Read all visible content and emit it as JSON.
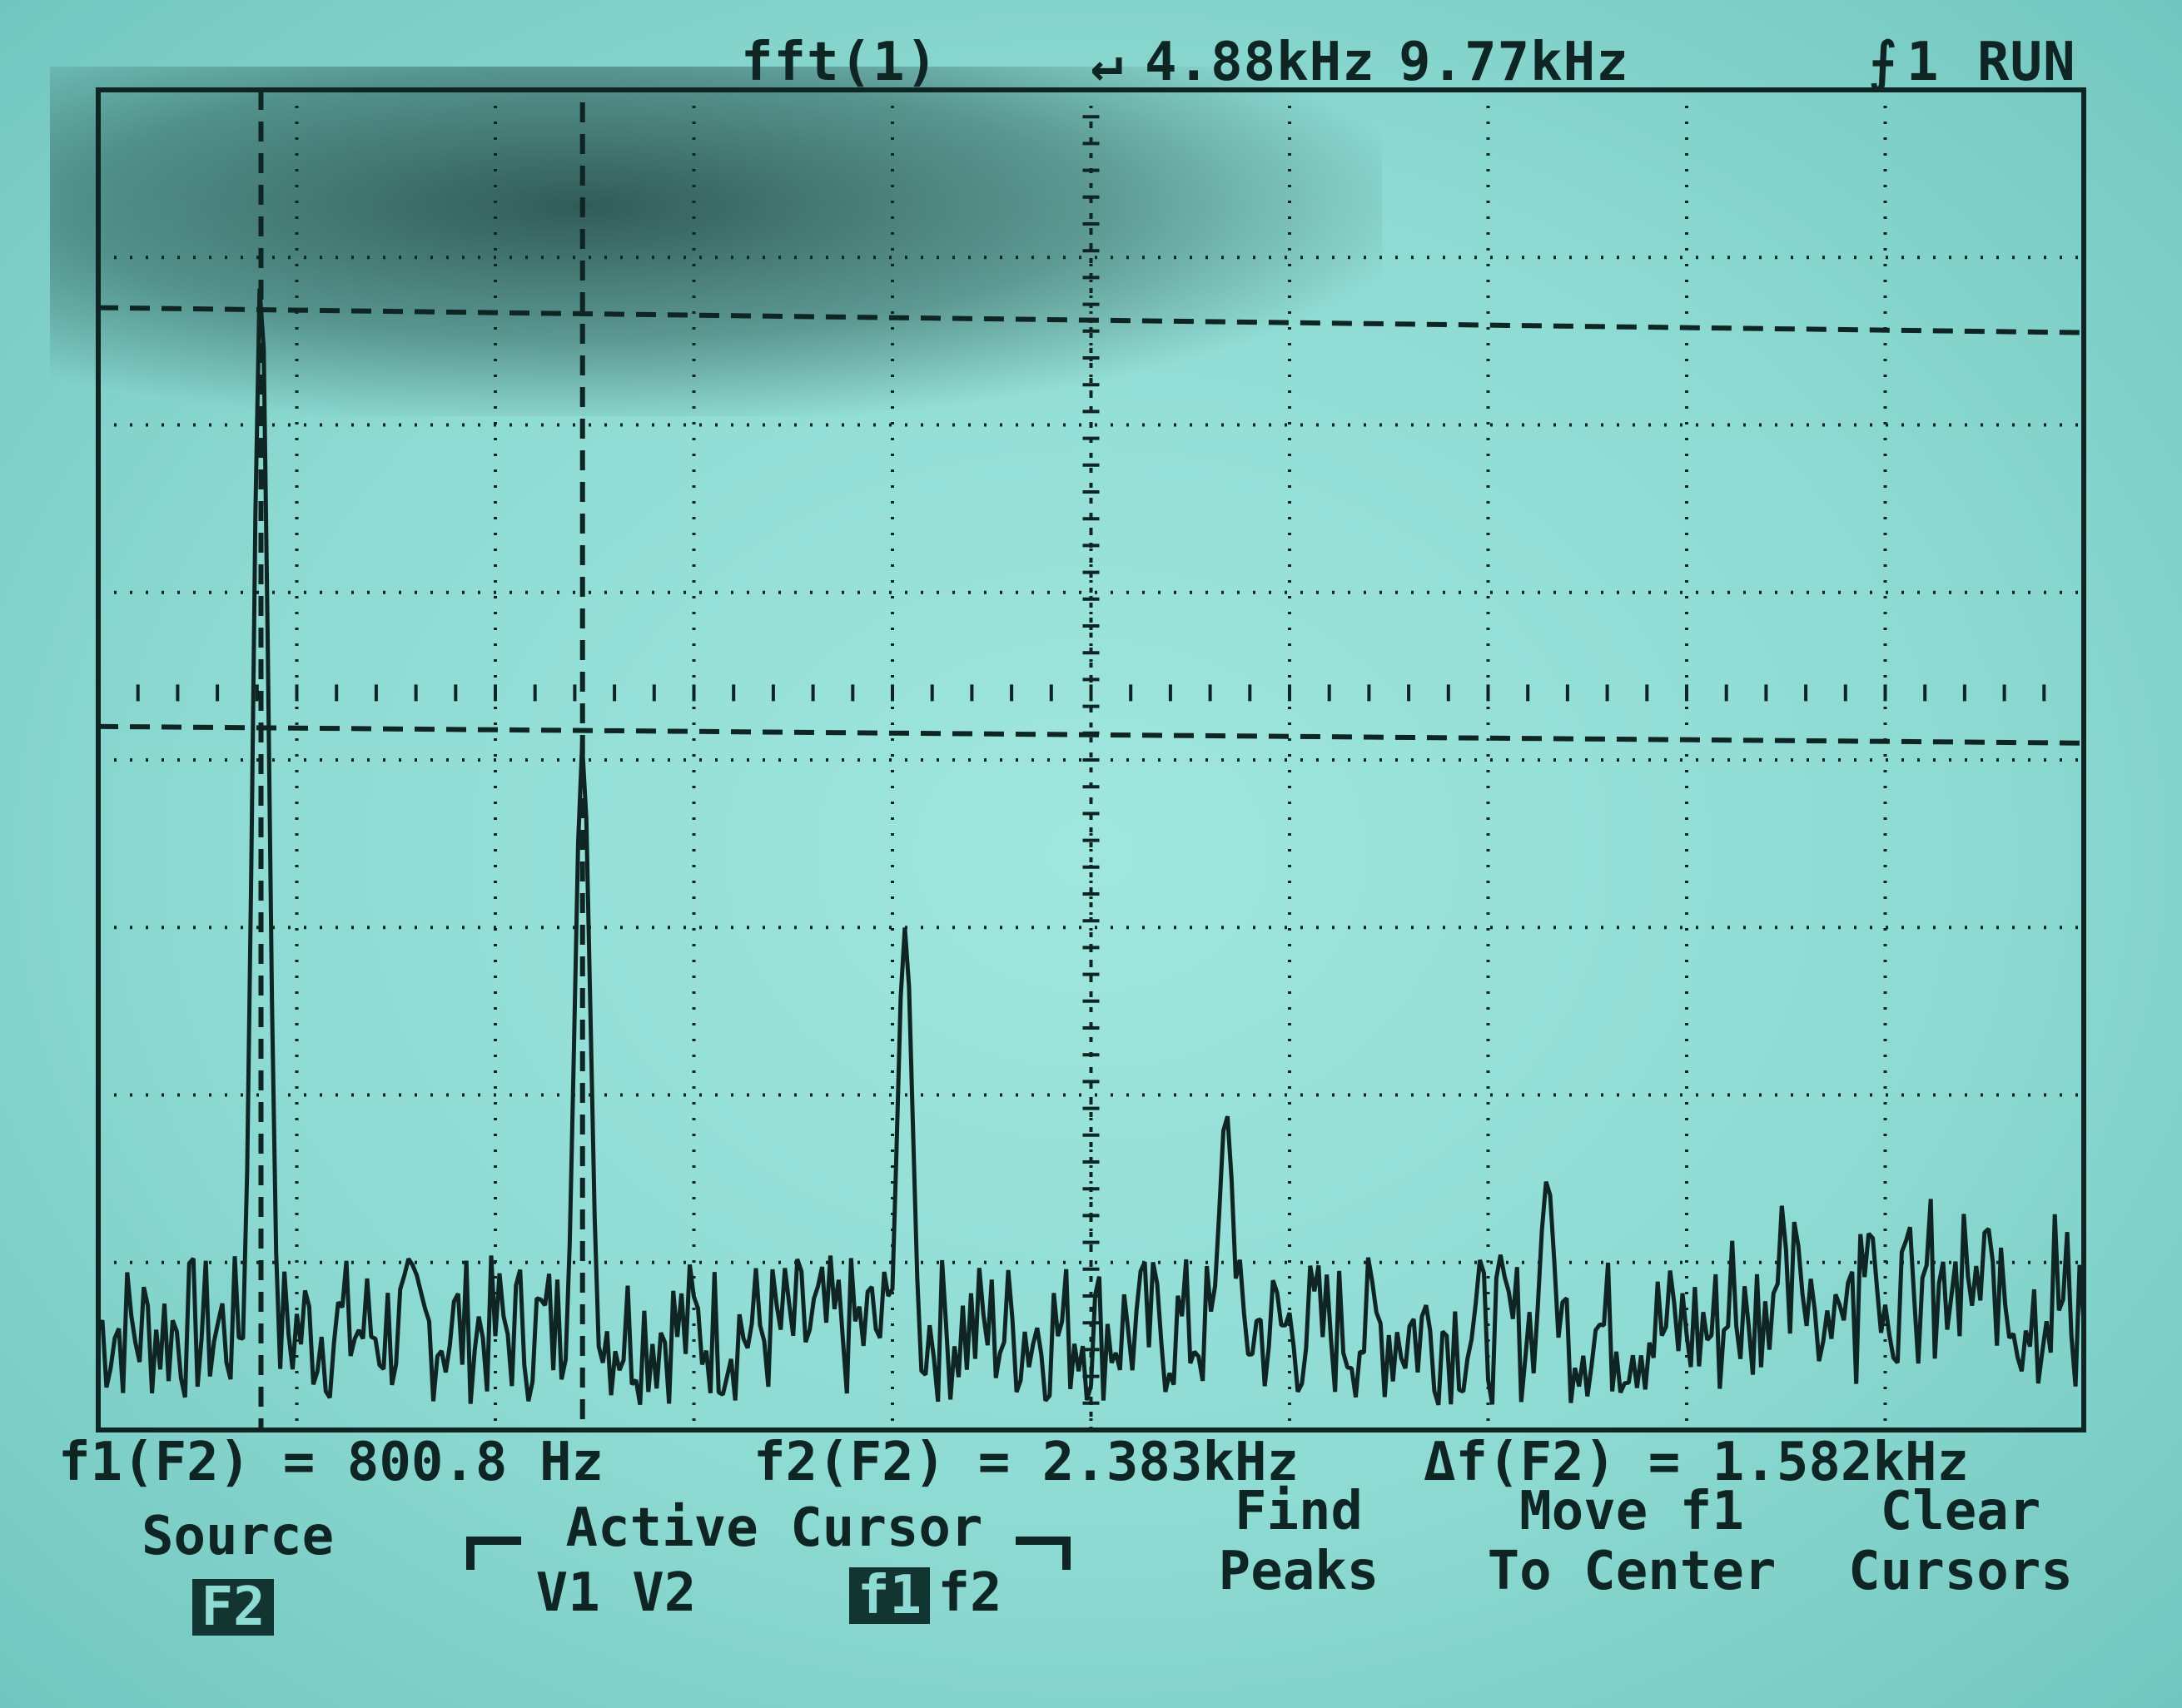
{
  "header": {
    "math_function": "fft(1)",
    "timebase_marker": "↵",
    "center_freq": "4.88kHz",
    "span": "9.77kHz",
    "trigger_icon": "trigger-rising-edge-icon",
    "trigger_source": "1",
    "run_state": "RUN"
  },
  "measurements": {
    "f1": "f1(F2) = 800.8 Hz",
    "f2": "f2(F2) = 2.383kHz",
    "delta": "Δf(F2) = 1.582kHz"
  },
  "softkeys": {
    "source_label": "Source",
    "source_value": "F2",
    "active_cursor_label": "Active Cursor",
    "v1v2_label": "V1 V2",
    "f1_selected": "f1",
    "f2_label": "f2",
    "find_line1": "Find",
    "find_line2": "Peaks",
    "move_line1": "Move f1",
    "move_line2": "To Center",
    "clear_line1": "Clear",
    "clear_line2": "Cursors"
  },
  "colors": {
    "screen_bg": "#8edbd3",
    "trace": "#0f2523",
    "grid": "#1f3f3c"
  },
  "chart_data": {
    "type": "line",
    "x_unit": "Hz",
    "xlim": [
      0,
      9770
    ],
    "ylim": [
      0,
      8
    ],
    "grid": "10x8 dotted",
    "peaks": [
      {
        "freq": 800,
        "level": 6.9
      },
      {
        "freq": 2383,
        "level": 4.1
      },
      {
        "freq": 3970,
        "level": 3.0
      },
      {
        "freq": 5550,
        "level": 1.9
      },
      {
        "freq": 7130,
        "level": 1.5
      },
      {
        "freq": 8720,
        "level": 1.2
      }
    ],
    "cursors": {
      "f1_hz": 800.8,
      "f2_hz": 2383,
      "level_upper_div": 6.7,
      "level_lower_div": 4.2,
      "center_hz": 4885
    }
  }
}
